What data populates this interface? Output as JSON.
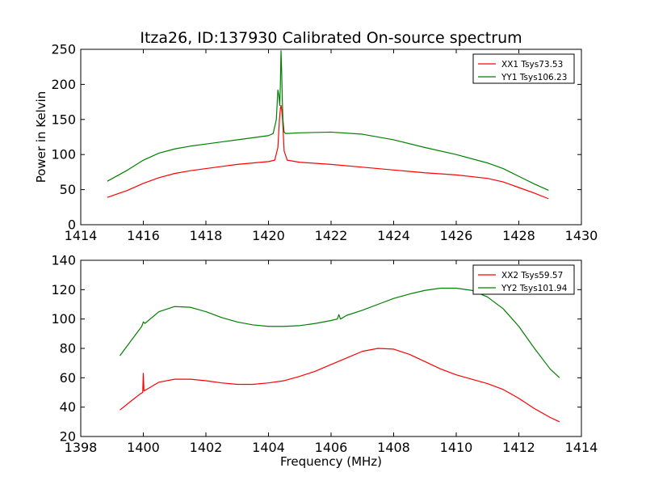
{
  "figure": {
    "title": "Itza26, ID:137930 Calibrated On-source spectrum"
  },
  "chart_data": [
    {
      "type": "line",
      "title": "Itza26, ID:137930 Calibrated On-source spectrum",
      "xlabel": "",
      "ylabel": "Power in Kelvin",
      "xlim": [
        1414,
        1430
      ],
      "ylim": [
        0,
        250
      ],
      "xticks": [
        1414,
        1416,
        1418,
        1420,
        1422,
        1424,
        1426,
        1428,
        1430
      ],
      "yticks": [
        0,
        50,
        100,
        150,
        200,
        250
      ],
      "legend_position": "upper-right",
      "grid": false,
      "series": [
        {
          "name": "XX1 Tsys73.53",
          "color": "#ff0000",
          "x": [
            1414.85,
            1415.5,
            1416,
            1416.5,
            1417,
            1417.5,
            1418,
            1418.5,
            1419,
            1419.5,
            1420,
            1420.2,
            1420.3,
            1420.35,
            1420.38,
            1420.4,
            1420.42,
            1420.45,
            1420.5,
            1420.6,
            1421,
            1422,
            1423,
            1424,
            1425,
            1426,
            1427,
            1427.5,
            1428,
            1428.5,
            1428.95
          ],
          "y": [
            39,
            49,
            59,
            67,
            73,
            77,
            80,
            83,
            86,
            88,
            90,
            92,
            110,
            150,
            165,
            170,
            165,
            150,
            105,
            92,
            89,
            86,
            82,
            78,
            74,
            71,
            66,
            61,
            53,
            45,
            37
          ]
        },
        {
          "name": "YY1 Tsys106.23",
          "color": "#008000",
          "x": [
            1414.85,
            1415.5,
            1416,
            1416.5,
            1417,
            1417.5,
            1418,
            1418.5,
            1419,
            1419.5,
            1420,
            1420.15,
            1420.25,
            1420.3,
            1420.33,
            1420.36,
            1420.38,
            1420.4,
            1420.42,
            1420.44,
            1420.46,
            1420.5,
            1420.55,
            1420.6,
            1421,
            1422,
            1423,
            1424,
            1425,
            1426,
            1427,
            1427.5,
            1428,
            1428.5,
            1428.95
          ],
          "y": [
            62,
            78,
            92,
            102,
            108,
            112,
            115,
            118,
            121,
            124,
            127,
            130,
            150,
            192,
            185,
            170,
            200,
            248,
            220,
            180,
            150,
            132,
            130,
            130,
            131,
            132,
            129,
            121,
            110,
            100,
            88,
            80,
            69,
            58,
            49
          ]
        }
      ]
    },
    {
      "type": "line",
      "title": "",
      "xlabel": "Frequency (MHz)",
      "ylabel": "",
      "xlim": [
        1398,
        1414
      ],
      "ylim": [
        20,
        140
      ],
      "xticks": [
        1398,
        1400,
        1402,
        1404,
        1406,
        1408,
        1410,
        1412,
        1414
      ],
      "yticks": [
        20,
        40,
        60,
        80,
        100,
        120,
        140
      ],
      "legend_position": "upper-right",
      "grid": false,
      "series": [
        {
          "name": "XX2 Tsys59.57",
          "color": "#ff0000",
          "x": [
            1399.25,
            1399.6,
            1399.9,
            1399.98,
            1400.0,
            1400.02,
            1400.1,
            1400.5,
            1401,
            1401.5,
            1402,
            1402.5,
            1403,
            1403.5,
            1404,
            1404.5,
            1405,
            1405.5,
            1406,
            1406.5,
            1407,
            1407.5,
            1408,
            1408.5,
            1409,
            1409.5,
            1410,
            1410.5,
            1411,
            1411.5,
            1412,
            1412.5,
            1413,
            1413.3
          ],
          "y": [
            38,
            44,
            49,
            50,
            63,
            51,
            52,
            57,
            59,
            59,
            58,
            56.5,
            55.5,
            55.5,
            56.5,
            58,
            61,
            64.5,
            69,
            73.5,
            78,
            80,
            79.5,
            76,
            71,
            66,
            62,
            59,
            56,
            52,
            46,
            39,
            33,
            30
          ]
        },
        {
          "name": "YY2 Tsys101.94",
          "color": "#008000",
          "x": [
            1399.25,
            1399.6,
            1399.95,
            1400.0,
            1400.05,
            1400.5,
            1401,
            1401.5,
            1402,
            1402.5,
            1403,
            1403.5,
            1404,
            1404.5,
            1405,
            1405.5,
            1406,
            1406.2,
            1406.25,
            1406.3,
            1406.5,
            1407,
            1407.5,
            1408,
            1408.5,
            1409,
            1409.5,
            1410,
            1410.5,
            1411,
            1411.5,
            1412,
            1412.5,
            1413,
            1413.3
          ],
          "y": [
            75,
            85,
            95,
            98,
            97,
            105,
            108.5,
            108,
            105,
            101,
            98,
            96,
            95,
            95,
            95.5,
            97,
            99,
            100,
            103,
            100,
            102.5,
            106,
            110,
            114,
            117,
            119.5,
            121,
            121,
            119.5,
            115,
            107,
            95,
            80,
            66,
            60
          ]
        }
      ]
    }
  ]
}
